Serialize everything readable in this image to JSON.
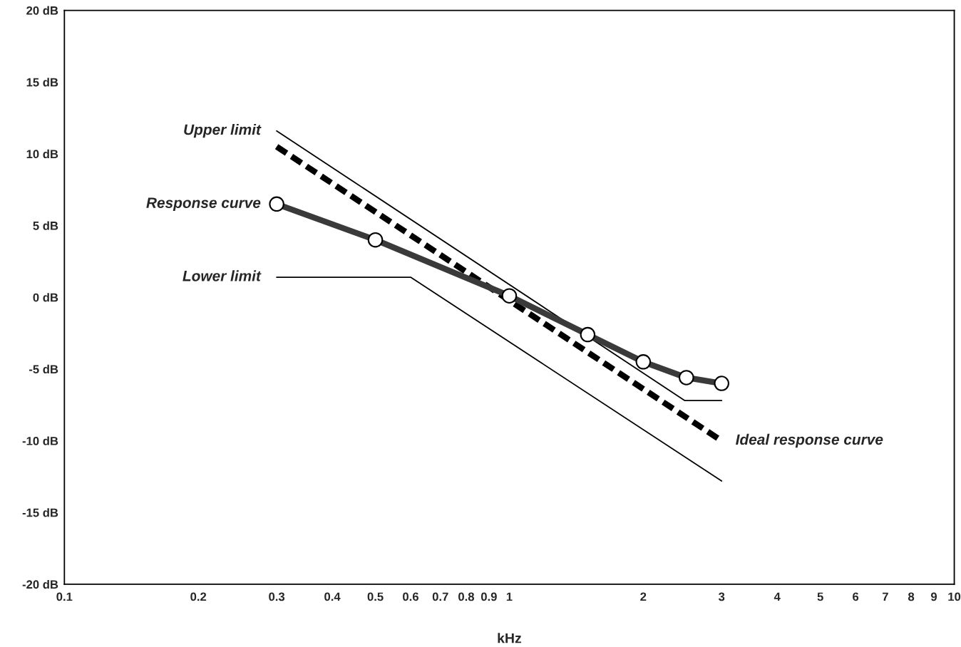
{
  "chart_data": {
    "type": "line",
    "xlabel": "kHz",
    "log": "x",
    "grid": false,
    "xlim": [
      0.1,
      10
    ],
    "ylim": [
      -20,
      20
    ],
    "xticks": [
      0.1,
      0.2,
      0.3,
      0.4,
      0.5,
      0.6,
      0.7,
      0.8,
      0.9,
      1,
      2,
      3,
      4,
      5,
      6,
      7,
      8,
      9,
      10
    ],
    "yticks": [
      {
        "value": -20,
        "label": "-20 dB"
      },
      {
        "value": -15,
        "label": "-15 dB"
      },
      {
        "value": -10,
        "label": "-10 dB"
      },
      {
        "value": -5,
        "label": "-5 dB"
      },
      {
        "value": 0,
        "label": "0 dB"
      },
      {
        "value": 5,
        "label": "5 dB"
      },
      {
        "value": 10,
        "label": "10 dB"
      },
      {
        "value": 15,
        "label": "15 dB"
      },
      {
        "value": 20,
        "label": "20 dB"
      }
    ],
    "series": [
      {
        "name": "Upper limit",
        "color": "#000000",
        "x": [
          0.3,
          2.48,
          3.0
        ],
        "values": [
          11.6,
          -7.2,
          -7.2
        ],
        "line_style": "solid",
        "marker": "none"
      },
      {
        "name": "Lower limit",
        "color": "#000000",
        "x": [
          0.3,
          0.6,
          3.0
        ],
        "values": [
          1.4,
          1.4,
          -12.8
        ],
        "line_style": "solid",
        "marker": "none"
      },
      {
        "name": "Ideal response curve",
        "color": "#000000",
        "x": [
          0.3,
          3.0
        ],
        "values": [
          10.5,
          -10.0
        ],
        "line_style": "dashed",
        "marker": "none"
      },
      {
        "name": "Response curve",
        "color": "#3a3a3a",
        "x": [
          0.3,
          0.5,
          1.0,
          1.5,
          2.0,
          2.5,
          3.0
        ],
        "values": [
          6.5,
          4.0,
          0.1,
          -2.6,
          -4.5,
          -5.6,
          -6.0
        ],
        "line_style": "solid",
        "marker": "circle"
      }
    ]
  }
}
